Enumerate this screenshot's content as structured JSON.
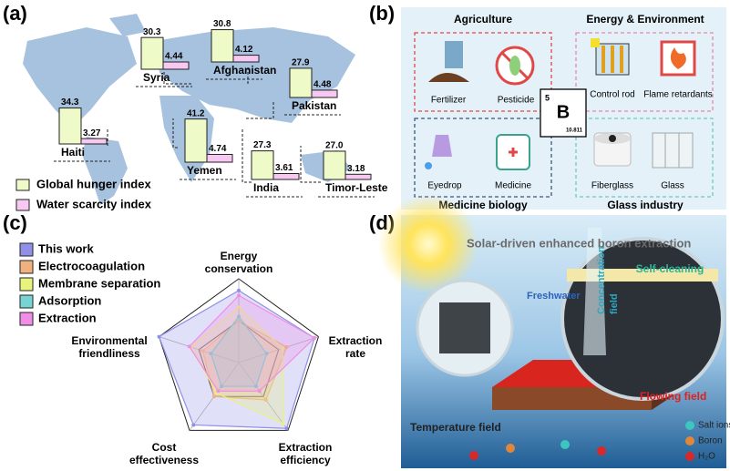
{
  "panel_labels": [
    "(a)",
    "(b)",
    "(c)",
    "(d)"
  ],
  "chart_data": [
    {
      "type": "bar",
      "categories": [
        "Syria",
        "Afghanistan",
        "Pakistan",
        "Haiti",
        "Yemen",
        "India",
        "Timor-Leste"
      ],
      "series": [
        {
          "name": "Global hunger index",
          "color": "#eefac8",
          "values": [
            30.3,
            30.8,
            27.9,
            34.3,
            41.2,
            27.3,
            27.0
          ],
          "value_labels": [
            "30.3",
            "30.8",
            "27.9",
            "34.3",
            "41.2",
            "27.3",
            "27.0"
          ]
        },
        {
          "name": "Water scarcity index",
          "color": "#f6c8f2",
          "values": [
            4.44,
            4.12,
            4.48,
            3.27,
            4.74,
            3.61,
            3.18
          ]
        }
      ]
    },
    {
      "type": "radar",
      "categories": [
        [
          "Energy",
          "conservation"
        ],
        [
          "Extraction",
          "rate"
        ],
        [
          "Extraction",
          "efficiency"
        ],
        [
          "Cost",
          "effectiveness"
        ],
        [
          "Environmental",
          "friendliness"
        ]
      ],
      "rlim": [
        0,
        1
      ],
      "series": [
        {
          "name": "This work",
          "color": "#8f90e6",
          "values": [
            0.86,
            0.95,
            0.97,
            0.92,
            1.0
          ]
        },
        {
          "name": "Electrocoagulation",
          "color": "#f1b17e",
          "values": [
            0.5,
            0.6,
            0.55,
            0.5,
            0.45
          ]
        },
        {
          "name": "Membrane separation",
          "color": "#e9f27a",
          "values": [
            0.66,
            0.55,
            0.9,
            0.45,
            0.6
          ]
        },
        {
          "name": "Adsorption",
          "color": "#78d3d3",
          "values": [
            0.55,
            0.35,
            0.35,
            0.35,
            0.35
          ]
        },
        {
          "name": "Extraction",
          "color": "#f08de6",
          "values": [
            0.8,
            0.95,
            0.42,
            0.42,
            0.62
          ]
        }
      ]
    }
  ],
  "applications": {
    "groups": [
      {
        "title": "Agriculture",
        "items": [
          "Fertilizer",
          "Pesticide"
        ]
      },
      {
        "title": "Energy & Environment",
        "items": [
          "Control rod",
          "Flame retardants"
        ]
      },
      {
        "title": "Medicine biology",
        "items": [
          "Eyedrop",
          "Medicine"
        ]
      },
      {
        "title": "Glass industry",
        "items": [
          "Fiberglass",
          "Glass"
        ]
      }
    ],
    "element": {
      "number": "5",
      "symbol": "B",
      "mass": "10.811"
    }
  },
  "schematic": {
    "title": "Solar-driven enhanced boron extraction",
    "labels": {
      "self_cleaning": "Self-cleaning",
      "freshwater": "Freshwater",
      "concentration": "Concentration",
      "field": "field",
      "flowing": "Flowing field",
      "temperature": "Temperature field"
    },
    "legend": [
      "Salt ions",
      "Boron",
      "H₂O"
    ]
  }
}
